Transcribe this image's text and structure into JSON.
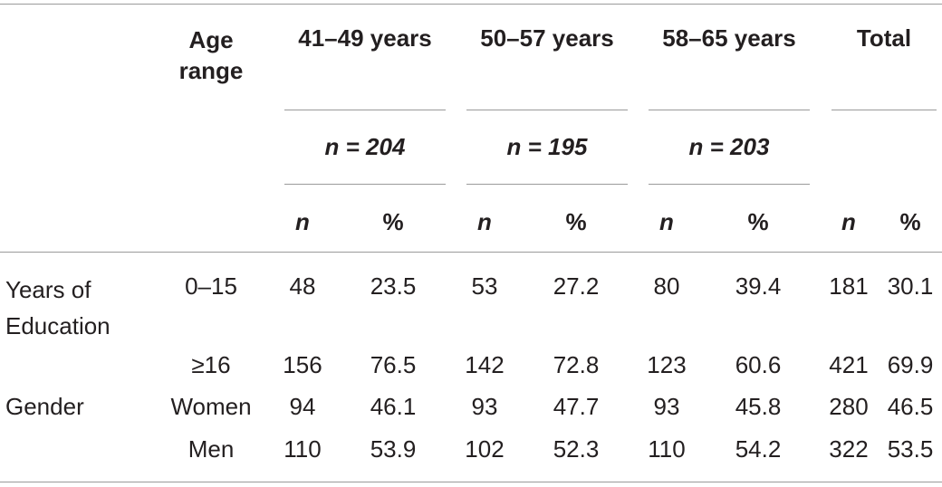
{
  "header": {
    "age_range": "Age range",
    "groups": [
      {
        "label": "41–49 years",
        "n_label": "n = 204"
      },
      {
        "label": "50–57 years",
        "n_label": "n = 195"
      },
      {
        "label": "58–65 years",
        "n_label": "n = 203"
      }
    ],
    "total": "Total",
    "sub_n": "n",
    "sub_pct": "%"
  },
  "rows": [
    {
      "category": "Years of Education",
      "sub": "0–15",
      "values": [
        "48",
        "23.5",
        "53",
        "27.2",
        "80",
        "39.4",
        "181",
        "30.1"
      ]
    },
    {
      "category": "",
      "sub": "≥16",
      "values": [
        "156",
        "76.5",
        "142",
        "72.8",
        "123",
        "60.6",
        "421",
        "69.9"
      ]
    },
    {
      "category": "Gender",
      "sub": "Women",
      "values": [
        "94",
        "46.1",
        "93",
        "47.7",
        "93",
        "45.8",
        "280",
        "46.5"
      ]
    },
    {
      "category": "",
      "sub": "Men",
      "values": [
        "110",
        "53.9",
        "102",
        "52.3",
        "110",
        "54.2",
        "322",
        "53.5"
      ]
    }
  ]
}
